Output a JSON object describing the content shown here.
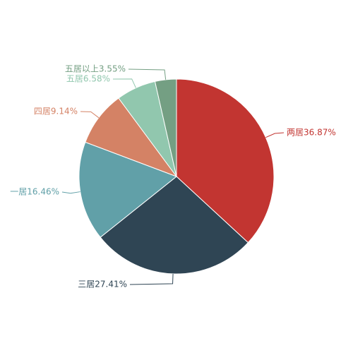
{
  "chart_data": {
    "type": "pie",
    "title": "",
    "slices": [
      {
        "name": "两居",
        "value": 36.87,
        "label": "两居36.87%",
        "color": "#c23531"
      },
      {
        "name": "三居",
        "value": 27.41,
        "label": "三居27.41%",
        "color": "#2f4554"
      },
      {
        "name": "一居",
        "value": 16.46,
        "label": "一居16.46%",
        "color": "#61a0a8"
      },
      {
        "name": "四居",
        "value": 9.14,
        "label": "四居9.14%",
        "color": "#d48265"
      },
      {
        "name": "五居",
        "value": 6.58,
        "label": "五居6.58%",
        "color": "#91c7ae"
      },
      {
        "name": "五居以上",
        "value": 3.55,
        "label": "五居以上3.55%",
        "color": "#749f83"
      }
    ]
  }
}
